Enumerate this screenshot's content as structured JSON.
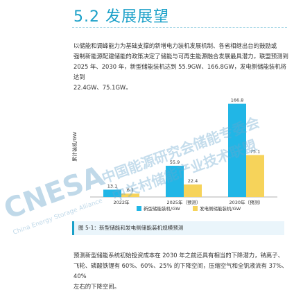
{
  "section": {
    "title": "5.2 发展展望"
  },
  "intro_lines": [
    "以储能和调峰能力为基础支撑的新增电力装机发展机制、各省相继出台的鼓励或",
    "强制新能源配建储能的政策决定了储能与可再生能源融合发展最具潜力。联盟预测到",
    "2025 年、2030 年，新型储能装机达到 55.9GW、166.8GW，发电侧储能装机将达到",
    "22.4GW、75.1GW。"
  ],
  "figure_caption": "图 5-1：新型储能和发电侧储能装机规模预测",
  "outro_lines": [
    "预测新型储能系统初始投资成本在 2030 年之前还具有相当的下降潜力，钠离子、",
    "飞轮、磷酸铁锂有 60%、60%、25% 的下降空间，压缩空气和全钒液流有 37%、40%",
    "左右的下降空间。"
  ],
  "watermark": {
    "org_cn_1": "中国能源研究会储能专委会",
    "org_cn_2": "中关村储能产业技术联盟",
    "logo_text": "CNESA",
    "logo_sub": "China Energy Storage Alliance"
  },
  "colors": {
    "accent": "#1aa0c8",
    "series_new": "#21b6e6",
    "series_gen": "#f6d35a"
  },
  "chart_data": {
    "type": "bar",
    "categories": [
      "2022年",
      "2025年（预测）",
      "2030年（预测）"
    ],
    "series": [
      {
        "name": "新型储能装机/GW",
        "values": [
          13.1,
          55.9,
          166.8
        ],
        "value_labels": [
          "13.1",
          "55.9",
          "166.8"
        ]
      },
      {
        "name": "发电侧储能装机/GW",
        "values": [
          6.1,
          22.4,
          75.1
        ],
        "value_labels": [
          "6.1",
          "22.4",
          "75.1"
        ]
      }
    ],
    "ylabel": "累计装机/GW",
    "ylim": [
      0,
      180
    ],
    "grid": false,
    "legend_position": "bottom"
  }
}
